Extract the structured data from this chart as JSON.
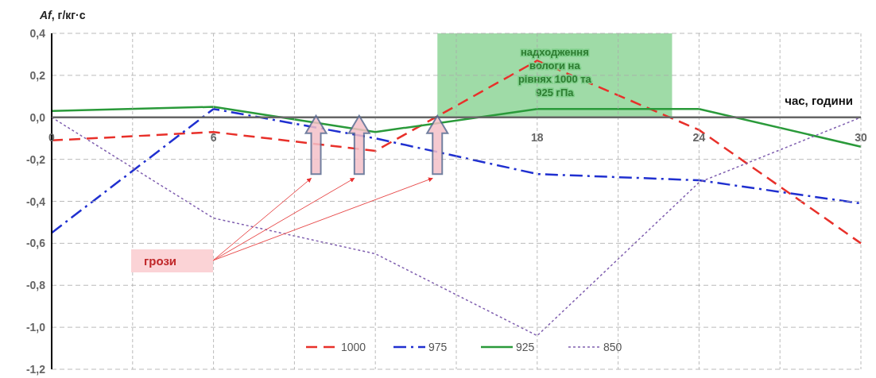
{
  "chart_data": {
    "type": "line",
    "ylabel": "Af, г/кг·с",
    "xlabel": "час, години",
    "x": [
      0,
      6,
      12,
      18,
      24,
      30
    ],
    "series": [
      {
        "name": "1000",
        "color": "#e8302a",
        "line_style": "dashed",
        "x": [
          0,
          6,
          12,
          18,
          24,
          30
        ],
        "values": [
          -0.11,
          -0.07,
          -0.16,
          0.27,
          -0.06,
          -0.6
        ]
      },
      {
        "name": "975",
        "color": "#2030d0",
        "line_style": "dashdot",
        "values": [
          -0.55,
          0.04,
          -0.1,
          -0.27,
          -0.3,
          -0.41
        ]
      },
      {
        "name": "925",
        "color": "#2a9a3a",
        "line_style": "solid",
        "values": [
          0.03,
          0.05,
          -0.07,
          0.04,
          0.04,
          -0.14
        ]
      },
      {
        "name": "850",
        "color": "#8060b0",
        "line_style": "dotted",
        "values": [
          0.0,
          -0.48,
          -0.65,
          -1.04,
          -0.31,
          0.0
        ]
      }
    ],
    "xlim": [
      0,
      30
    ],
    "xticks": [
      0,
      {
        "value": 3,
        "label": null
      },
      6,
      {
        "value": 9,
        "label": null
      },
      {
        "value": 12,
        "label": null
      },
      {
        "value": 15,
        "label": null
      },
      18,
      {
        "value": 21,
        "label": null
      },
      24,
      {
        "value": 27,
        "label": null
      },
      30
    ],
    "ylim": [
      -1.2,
      0.4
    ],
    "yticks": [
      {
        "value": 0.4,
        "label": "0,4"
      },
      {
        "value": 0.2,
        "label": "0,2"
      },
      {
        "value": 0,
        "label": "0,0"
      },
      {
        "value": -0.2,
        "label": "-0,2"
      },
      {
        "value": -0.4,
        "label": "-0,4"
      },
      {
        "value": -0.6,
        "label": "-0,6"
      },
      {
        "value": -0.8,
        "label": "-0,8"
      },
      {
        "value": -1,
        "label": "-1,0"
      },
      {
        "value": -1.2,
        "label": "-1,2"
      }
    ],
    "bands": [
      {
        "axis": "x",
        "from": 14.3,
        "to": 23,
        "label": "надходження вологи на рівнях 1000 та 925 гПа",
        "color": "#7fcf8a"
      }
    ],
    "annotations": [
      "грози"
    ],
    "grid": true,
    "legend": "bottom",
    "marker": "none"
  }
}
